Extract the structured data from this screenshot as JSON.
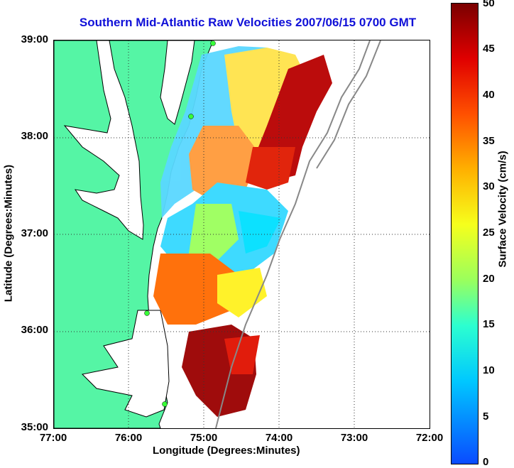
{
  "title": "Southern Mid-Atlantic Raw Velocities 2007/06/15 0700 GMT",
  "xaxis": {
    "label": "Longitude (Degrees:Minutes)",
    "ticks": [
      "77:00",
      "76:00",
      "75:00",
      "74:00",
      "73:00",
      "72:00"
    ]
  },
  "yaxis": {
    "label": "Latitude (Degrees:Minutes)",
    "ticks": [
      "39:00",
      "38:00",
      "37:00",
      "36:00",
      "35:00"
    ]
  },
  "colorbar": {
    "label": "Surface Velocity (cm/s)",
    "ticks": [
      "50",
      "45",
      "40",
      "35",
      "30",
      "25",
      "20",
      "15",
      "10",
      "5",
      "0"
    ]
  },
  "colors": {
    "land": "#55f5a5",
    "title": "#1010d8"
  }
}
